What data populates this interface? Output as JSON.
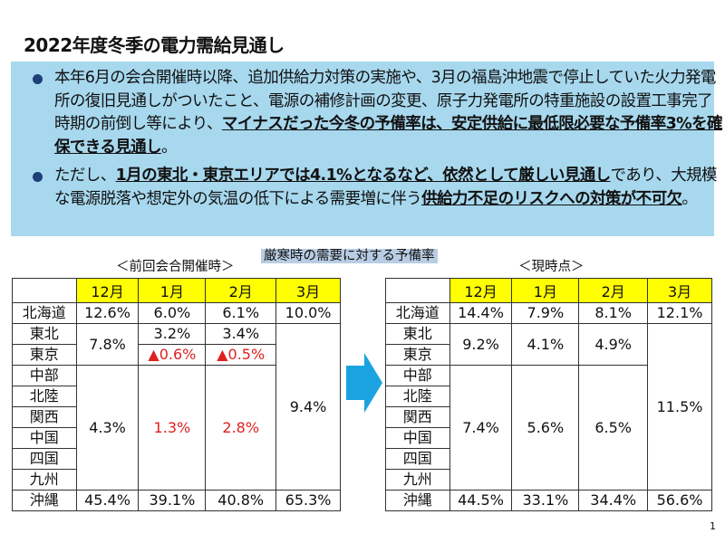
{
  "title": "2022年度冬季の電力需給見通し",
  "bullets": [
    {
      "t1": "本年6月の会合開催時以降、追加供給力対策の実施や、3月の福島沖地震で停止していた火力発電所の復旧見通しがついたこと、電源の補修計画の変更、原子力発電所の特重施設の設置工事完了時期の前倒し等により、",
      "b1": "マイナスだった今冬の予備率は、安定供給に最低限必要な予備率3%を確保できる見通し",
      "t2": "。"
    },
    {
      "t1": "ただし、",
      "b1": "1月の東北・東京エリアでは4.1%となるなど、依然として厳しい見通し",
      "t2": "であり、大規模な電源脱落や想定外の気温の低下による需要増に伴う",
      "b2": "供給力不足のリスクへの対策が不可欠",
      "t3": "。"
    }
  ],
  "center_caption": "厳寒時の需要に対する予備率",
  "months": [
    "12月",
    "1月",
    "2月",
    "3月"
  ],
  "regions": [
    "北海道",
    "東北",
    "東京",
    "中部",
    "北陸",
    "関西",
    "中国",
    "四国",
    "九州",
    "沖縄"
  ],
  "previous": {
    "caption": "＜前回会合開催時＞",
    "hokkaido": [
      "12.6%",
      "6.0%",
      "6.1%",
      "10.0%"
    ],
    "tohoku_tokyo_dec": "7.8%",
    "tohoku": [
      "3.2%",
      "3.4%"
    ],
    "tokyo": [
      "▲0.6%",
      "▲0.5%"
    ],
    "east_mar": "9.4%",
    "west": [
      "4.3%",
      "1.3%",
      "2.8%"
    ],
    "okinawa": [
      "45.4%",
      "39.1%",
      "40.8%",
      "65.3%"
    ]
  },
  "current": {
    "caption": "＜現時点＞",
    "hokkaido": [
      "14.4%",
      "7.9%",
      "8.1%",
      "12.1%"
    ],
    "tohoku_tokyo": [
      "9.2%",
      "4.1%",
      "4.9%"
    ],
    "east_mar": "11.5%",
    "west": [
      "7.4%",
      "5.6%",
      "6.5%"
    ],
    "okinawa": [
      "44.5%",
      "33.1%",
      "34.4%",
      "56.6%"
    ]
  },
  "colors": {
    "panel": "#a7d8ee",
    "header": "#ffff00",
    "negative": "#e02020",
    "arrow": "#1aa3e0"
  },
  "page_number": "1"
}
